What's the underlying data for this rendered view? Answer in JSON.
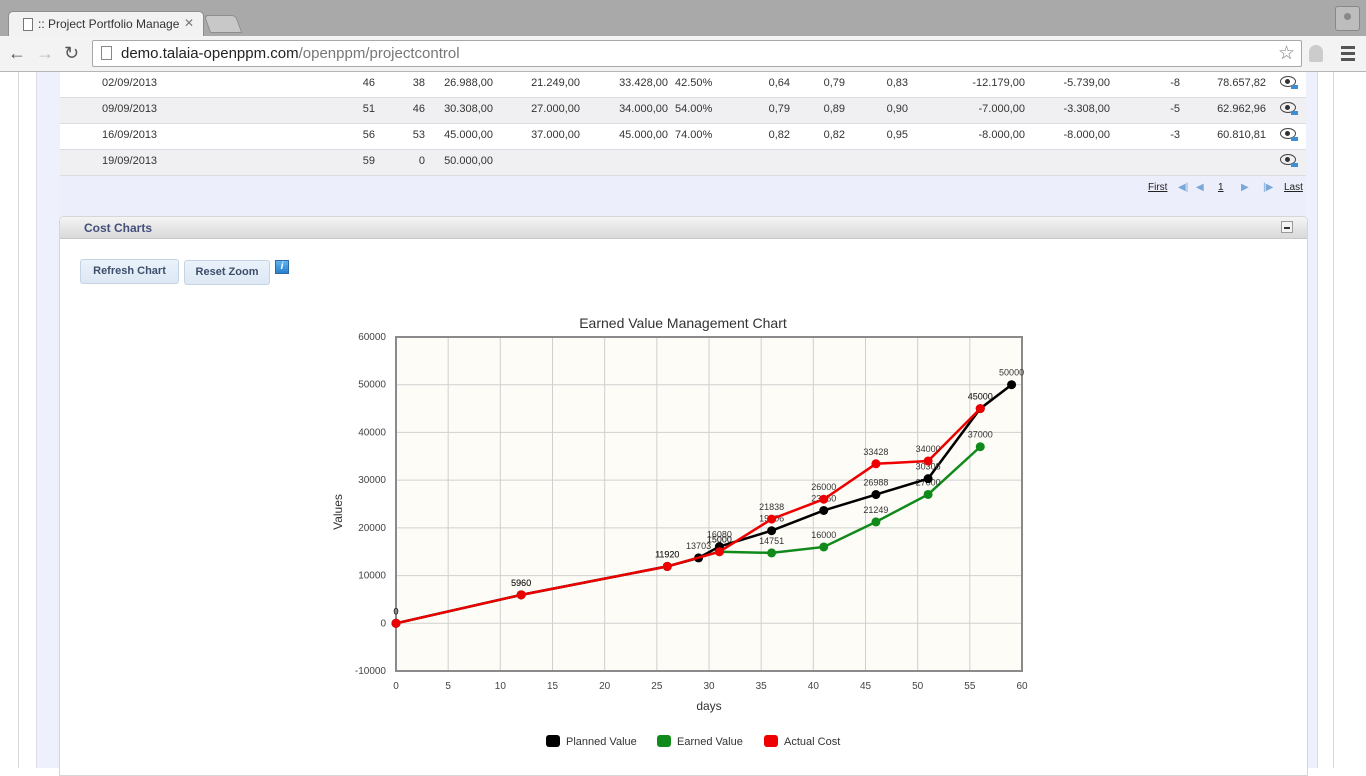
{
  "browser": {
    "tab_title": ":: Project Portfolio Manage",
    "url_domain": "demo.talaia-openppm.com",
    "url_path": "/openppm/projectcontrol"
  },
  "table": {
    "rows": [
      {
        "date": "02/09/2013",
        "c1": "46",
        "c2": "38",
        "pv": "26.988,00",
        "ev": "21.249,00",
        "ac": "33.428,00",
        "pct": "42.50%",
        "spi": "0,64",
        "cpi": "0,79",
        "x3": "0,83",
        "cv": "-12.179,00",
        "sv": "-5.739,00",
        "sd": "-8",
        "eac": "78.657,82"
      },
      {
        "date": "09/09/2013",
        "c1": "51",
        "c2": "46",
        "pv": "30.308,00",
        "ev": "27.000,00",
        "ac": "34.000,00",
        "pct": "54.00%",
        "spi": "0,79",
        "cpi": "0,89",
        "x3": "0,90",
        "cv": "-7.000,00",
        "sv": "-3.308,00",
        "sd": "-5",
        "eac": "62.962,96"
      },
      {
        "date": "16/09/2013",
        "c1": "56",
        "c2": "53",
        "pv": "45.000,00",
        "ev": "37.000,00",
        "ac": "45.000,00",
        "pct": "74.00%",
        "spi": "0,82",
        "cpi": "0,82",
        "x3": "0,95",
        "cv": "-8.000,00",
        "sv": "-8.000,00",
        "sd": "-3",
        "eac": "60.810,81"
      },
      {
        "date": "19/09/2013",
        "c1": "59",
        "c2": "0",
        "pv": "50.000,00",
        "ev": "",
        "ac": "",
        "pct": "",
        "spi": "",
        "cpi": "",
        "x3": "",
        "cv": "",
        "sv": "",
        "sd": "",
        "eac": ""
      }
    ],
    "pager": {
      "first": "First",
      "page": "1",
      "last": "Last"
    }
  },
  "panel": {
    "title": "Cost Charts",
    "refresh_label": "Refresh Chart",
    "reset_zoom_label": "Reset Zoom",
    "info_label": "i"
  },
  "chart_data": {
    "type": "line",
    "title": "Earned Value Management Chart",
    "xlabel": "days",
    "ylabel": "Values",
    "xlim": [
      0,
      60
    ],
    "ylim": [
      -10000,
      60000
    ],
    "x_ticks": [
      0,
      5,
      10,
      15,
      20,
      25,
      30,
      35,
      40,
      45,
      50,
      55,
      60
    ],
    "y_ticks": [
      -10000,
      0,
      10000,
      20000,
      30000,
      40000,
      50000,
      60000
    ],
    "grid": true,
    "legend_position": "bottom",
    "series": [
      {
        "name": "Planned Value",
        "color": "#000000",
        "points": [
          [
            0,
            0
          ],
          [
            12,
            5960
          ],
          [
            26,
            11920
          ],
          [
            29,
            13703
          ],
          [
            31,
            16080
          ],
          [
            36,
            19406
          ],
          [
            41,
            23650
          ],
          [
            46,
            26988
          ],
          [
            51,
            30308
          ],
          [
            56,
            45000
          ],
          [
            59,
            50000
          ]
        ]
      },
      {
        "name": "Earned Value",
        "color": "#108a1a",
        "points": [
          [
            0,
            0
          ],
          [
            12,
            5960
          ],
          [
            26,
            11920
          ],
          [
            31,
            15000
          ],
          [
            36,
            14751
          ],
          [
            41,
            16000
          ],
          [
            46,
            21249
          ],
          [
            51,
            27000
          ],
          [
            56,
            37000
          ]
        ]
      },
      {
        "name": "Actual Cost",
        "color": "#ee0000",
        "points": [
          [
            0,
            0
          ],
          [
            12,
            5960
          ],
          [
            26,
            11920
          ],
          [
            31,
            15000
          ],
          [
            36,
            21838
          ],
          [
            41,
            26000
          ],
          [
            46,
            33428
          ],
          [
            51,
            34000
          ],
          [
            56,
            45000
          ]
        ]
      }
    ]
  }
}
